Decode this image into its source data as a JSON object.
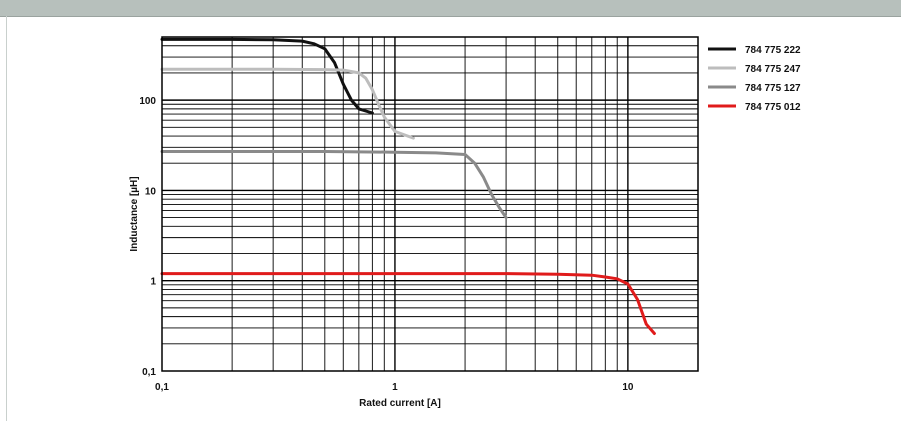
{
  "chart_data": {
    "type": "line",
    "title": "",
    "xlabel": "Rated current  [A]",
    "ylabel": "Inductance [µH]",
    "x_scale": "log",
    "y_scale": "log",
    "xlim": [
      0.1,
      20
    ],
    "ylim": [
      0.1,
      500
    ],
    "x_tick_labels": [
      {
        "value": 0.1,
        "label": "0,1"
      },
      {
        "value": 1,
        "label": "1"
      },
      {
        "value": 10,
        "label": "10"
      }
    ],
    "y_tick_labels": [
      {
        "value": 0.1,
        "label": "0,1"
      },
      {
        "value": 1,
        "label": "1"
      },
      {
        "value": 10,
        "label": "10"
      },
      {
        "value": 100,
        "label": "100"
      }
    ],
    "grid": true,
    "legend": "right",
    "series": [
      {
        "name": "784 775 222",
        "color": "#111111",
        "x": [
          0.1,
          0.2,
          0.3,
          0.4,
          0.45,
          0.5,
          0.55,
          0.6,
          0.65,
          0.7,
          0.8
        ],
        "y": [
          470,
          470,
          465,
          450,
          420,
          370,
          260,
          150,
          100,
          80,
          72
        ]
      },
      {
        "name": "784 775 247",
        "color": "#bdbdbd",
        "x": [
          0.1,
          0.3,
          0.5,
          0.6,
          0.7,
          0.75,
          0.8,
          0.85,
          0.9,
          1.0,
          1.2
        ],
        "y": [
          220,
          220,
          218,
          215,
          200,
          175,
          130,
          90,
          65,
          45,
          38
        ]
      },
      {
        "name": "784 775 127",
        "color": "#8a8a8a",
        "x": [
          0.1,
          0.5,
          1.0,
          1.5,
          2.0,
          2.2,
          2.4,
          2.6,
          2.8,
          3.0
        ],
        "y": [
          27,
          27,
          26.5,
          26,
          25,
          20,
          14,
          9,
          6.5,
          5
        ]
      },
      {
        "name": "784 775 012",
        "color": "#e01b1b",
        "x": [
          0.1,
          1,
          3,
          5,
          7,
          8,
          9,
          10,
          11,
          12,
          13
        ],
        "y": [
          1.2,
          1.2,
          1.2,
          1.18,
          1.15,
          1.1,
          1.05,
          0.92,
          0.62,
          0.33,
          0.26
        ]
      }
    ]
  }
}
